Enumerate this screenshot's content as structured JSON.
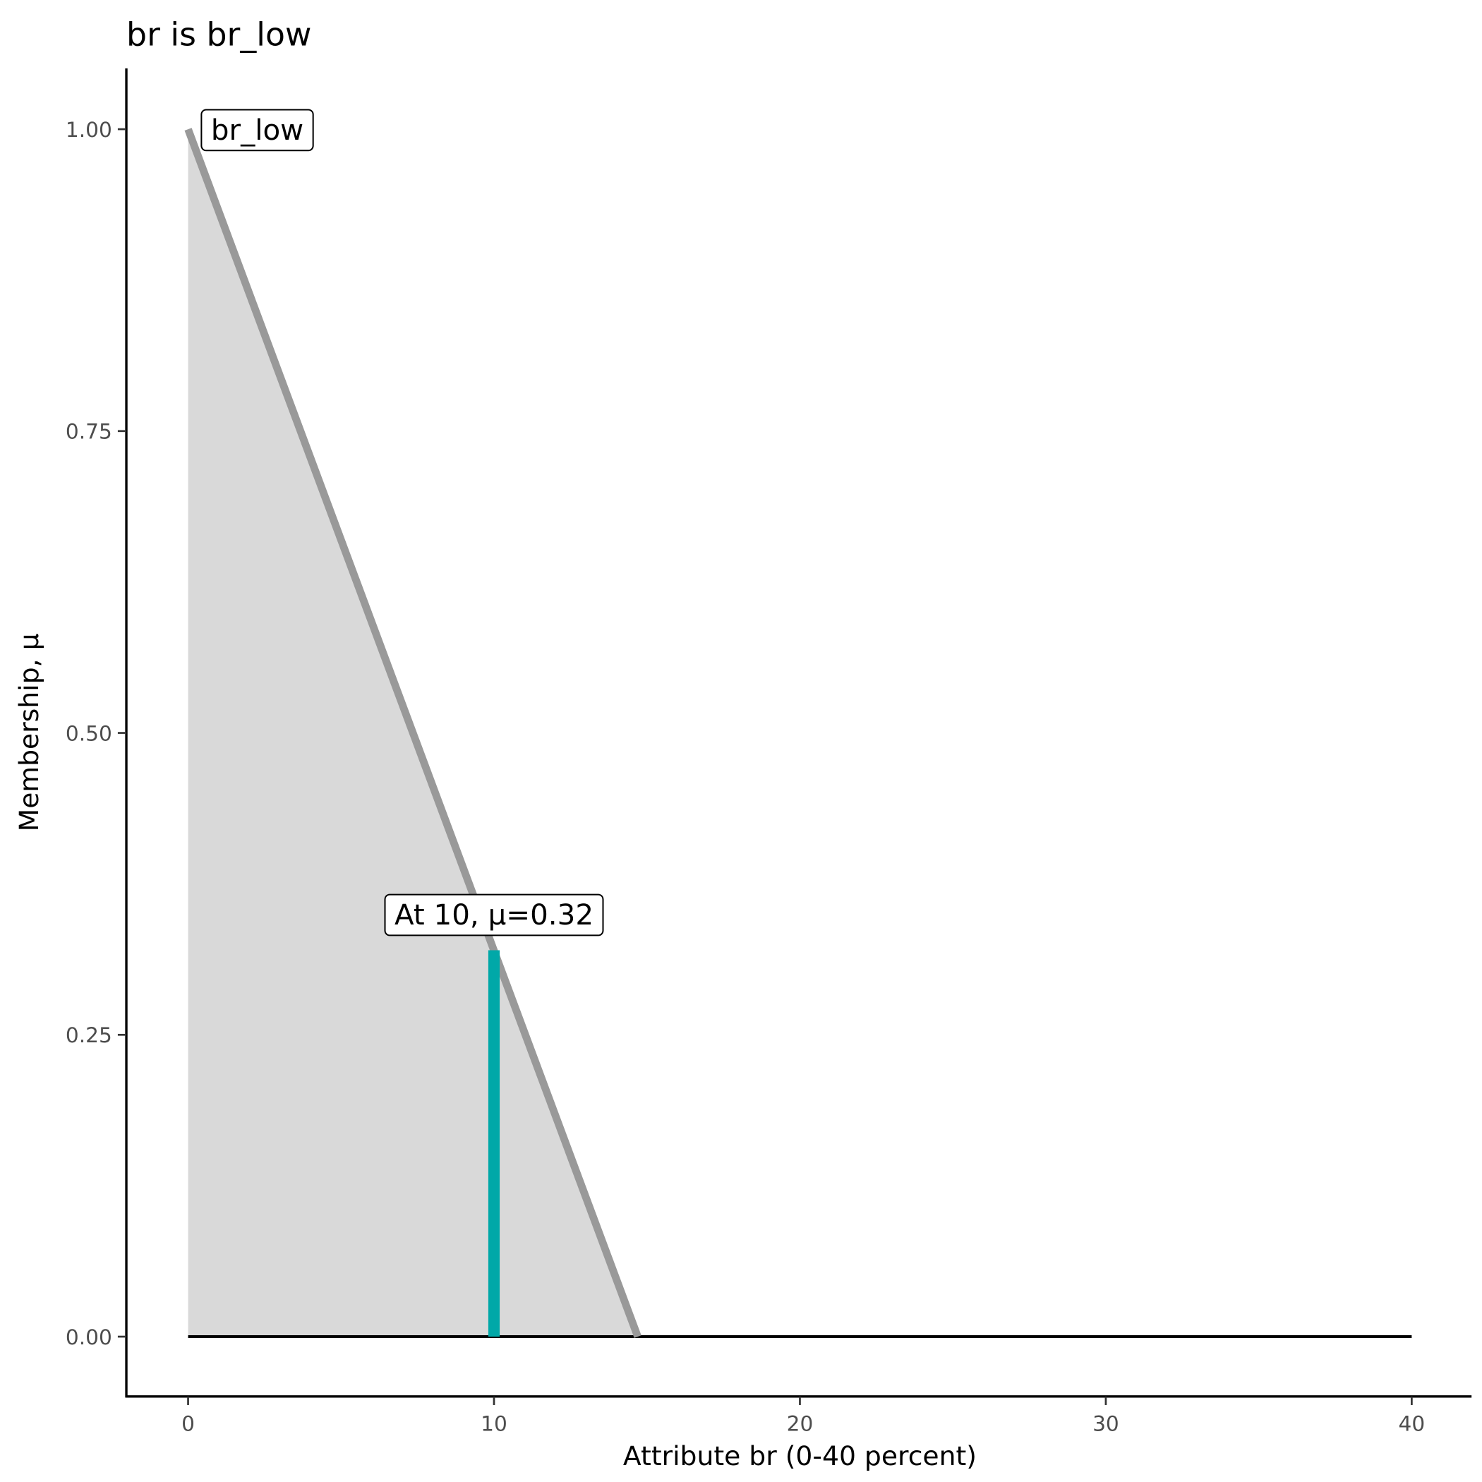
{
  "chart_data": {
    "type": "area",
    "title": "br is br_low",
    "xlabel": "Attribute br (0-40 percent)",
    "ylabel": "Membership, μ",
    "xlim": [
      -2,
      42
    ],
    "ylim": [
      -0.05,
      1.05
    ],
    "x_ticks": [
      0,
      10,
      20,
      30,
      40
    ],
    "x_tick_labels": [
      "0",
      "10",
      "20",
      "30",
      "40"
    ],
    "y_ticks": [
      0,
      0.25,
      0.5,
      0.75,
      1.0
    ],
    "y_tick_labels": [
      "0.00",
      "0.25",
      "0.50",
      "0.75",
      "1.00"
    ],
    "grid": false,
    "membership_function": {
      "name": "br_low",
      "x": [
        0,
        14.7
      ],
      "y": [
        1,
        0
      ],
      "line_color": "#999999",
      "fill_color": "#d9d9d9"
    },
    "baseline": {
      "x": [
        0,
        40
      ],
      "y": 0,
      "color": "#000000"
    },
    "evaluation": {
      "x": 10,
      "mu": 0.32,
      "color": "#00a8a8"
    },
    "annotations": [
      {
        "text": "br_low",
        "x": 0,
        "y": 1.0
      },
      {
        "text": "At 10, μ=0.32",
        "x": 10,
        "y": 0.35
      }
    ]
  }
}
